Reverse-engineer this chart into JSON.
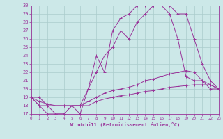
{
  "xlabel": "Windchill (Refroidissement éolien,°C)",
  "xlim": [
    0,
    23
  ],
  "ylim": [
    17,
    30
  ],
  "yticks": [
    17,
    18,
    19,
    20,
    21,
    22,
    23,
    24,
    25,
    26,
    27,
    28,
    29,
    30
  ],
  "xticks": [
    0,
    1,
    2,
    3,
    4,
    5,
    6,
    7,
    8,
    9,
    10,
    11,
    12,
    13,
    14,
    15,
    16,
    17,
    18,
    19,
    20,
    21,
    22,
    23
  ],
  "bg_color": "#cce8e8",
  "grid_color": "#aacccc",
  "line_color": "#993399",
  "curve1_x": [
    0,
    1,
    2,
    3,
    4,
    5,
    6,
    7,
    8,
    9,
    10,
    11,
    12,
    13,
    14,
    15,
    16,
    17,
    18,
    19,
    20,
    21,
    22,
    23
  ],
  "curve1_y": [
    19,
    19,
    18,
    17,
    17,
    18,
    18,
    20,
    22,
    24,
    25,
    27,
    26,
    28,
    29,
    30,
    30,
    30,
    29,
    29,
    26,
    23,
    21,
    20
  ],
  "curve2_x": [
    0,
    1,
    2,
    3,
    4,
    5,
    6,
    7,
    8,
    9,
    10,
    11,
    12,
    13,
    14,
    15,
    16,
    17,
    18,
    19,
    20,
    21,
    22,
    23
  ],
  "curve2_y": [
    19,
    18,
    17,
    17,
    17,
    18,
    17,
    20,
    24,
    22,
    27,
    28.5,
    29,
    30,
    30,
    30,
    30,
    29,
    26,
    21.5,
    21,
    21,
    20,
    20
  ],
  "curve3_x": [
    0,
    1,
    2,
    3,
    4,
    5,
    6,
    7,
    8,
    9,
    10,
    11,
    12,
    13,
    14,
    15,
    16,
    17,
    18,
    19,
    20,
    21,
    22,
    23
  ],
  "curve3_y": [
    19,
    18,
    18,
    18,
    18,
    18,
    18,
    18.5,
    19,
    19.5,
    19.8,
    20,
    20.2,
    20.5,
    21,
    21.2,
    21.5,
    21.8,
    22,
    22.2,
    22,
    21,
    20.5,
    20
  ],
  "curve4_x": [
    0,
    1,
    2,
    3,
    4,
    5,
    6,
    7,
    8,
    9,
    10,
    11,
    12,
    13,
    14,
    15,
    16,
    17,
    18,
    19,
    20,
    21,
    22,
    23
  ],
  "curve4_y": [
    19,
    18.5,
    18.2,
    18,
    18,
    18,
    18,
    18,
    18.5,
    18.8,
    19,
    19.2,
    19.3,
    19.5,
    19.7,
    19.8,
    20,
    20.2,
    20.3,
    20.4,
    20.5,
    20.5,
    20.5,
    20
  ]
}
